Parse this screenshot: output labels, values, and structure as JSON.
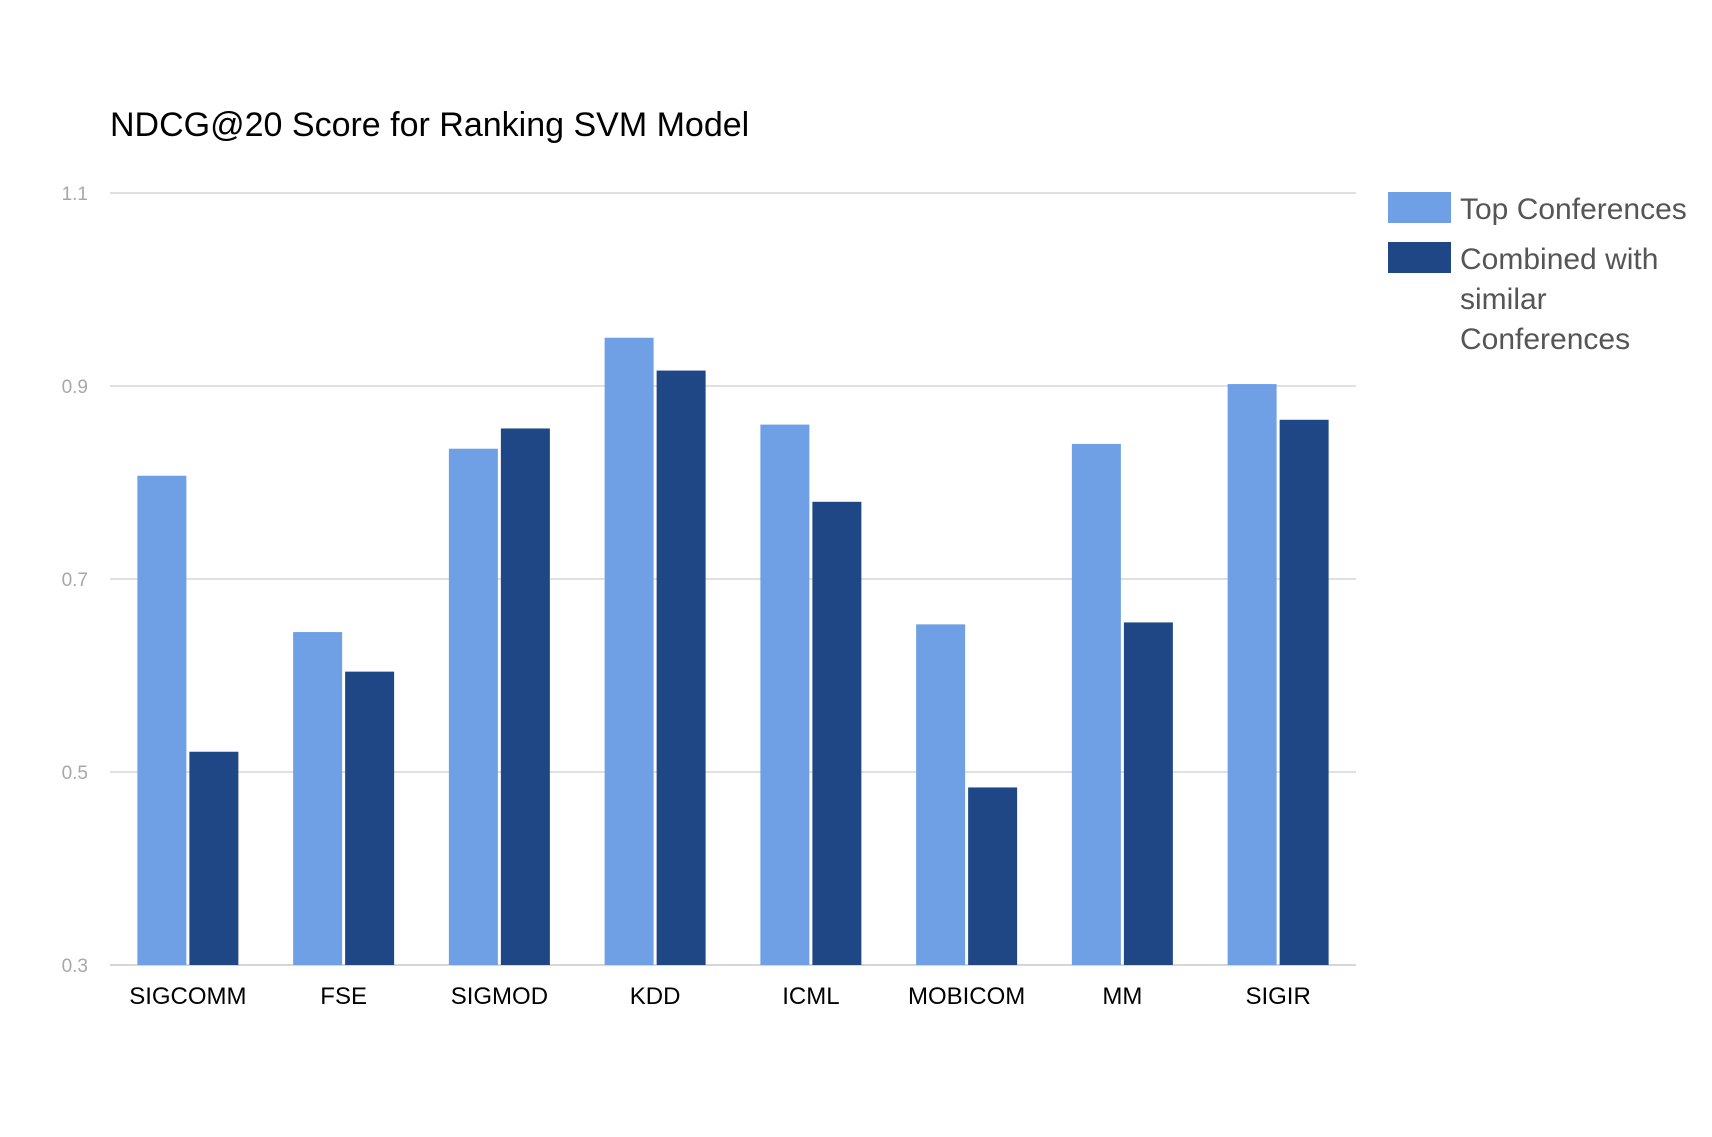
{
  "chart_data": {
    "type": "bar",
    "title": "NDCG@20 Score for Ranking SVM Model",
    "xlabel": "",
    "ylabel": "",
    "ylim": [
      0.3,
      1.1
    ],
    "yticks": [
      0.3,
      0.5,
      0.7,
      0.9,
      1.1
    ],
    "ytick_labels": [
      "0.3",
      "0.5",
      "0.7",
      "0.9",
      "1.1"
    ],
    "grid": true,
    "legend_position": "right",
    "categories": [
      "SIGCOMM",
      "FSE",
      "SIGMOD",
      "KDD",
      "ICML",
      "MOBICOM",
      "MM",
      "SIGIR"
    ],
    "series": [
      {
        "name": "Top Conferences",
        "color": "#6fa0e6",
        "values": [
          0.807,
          0.645,
          0.835,
          0.95,
          0.86,
          0.653,
          0.84,
          0.902
        ]
      },
      {
        "name": "Combined with similar Conferences",
        "legend_lines": [
          "Combined with",
          "similar",
          "Conferences"
        ],
        "color": "#1f4785",
        "values": [
          0.521,
          0.604,
          0.856,
          0.916,
          0.78,
          0.484,
          0.655,
          0.865
        ]
      }
    ]
  }
}
